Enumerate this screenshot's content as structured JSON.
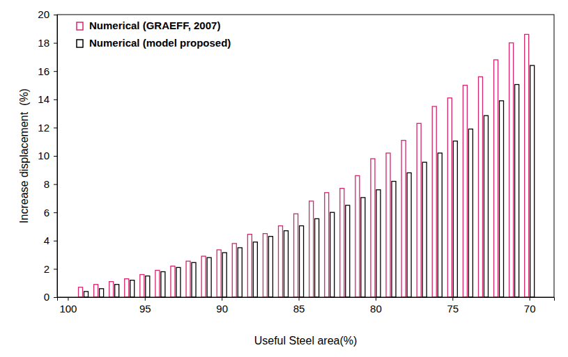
{
  "chart_data": {
    "type": "bar",
    "x_label": "Useful Steel area(%)",
    "y_label": "Increase displacement  (%)",
    "x": [
      99,
      98,
      97,
      96,
      95,
      94,
      93,
      92,
      91,
      90,
      89,
      88,
      87,
      86,
      85,
      84,
      83,
      82,
      81,
      80,
      79,
      78,
      77,
      76,
      75,
      74,
      73,
      72,
      71,
      70
    ],
    "series": [
      {
        "name": "Numerical (GRAEFF, 2007)",
        "color": "#d6246e",
        "values": [
          0.7,
          0.9,
          1.1,
          1.3,
          1.6,
          1.9,
          2.2,
          2.55,
          2.9,
          3.35,
          3.8,
          4.45,
          4.5,
          5.05,
          5.9,
          6.8,
          7.4,
          7.7,
          8.6,
          9.8,
          10.2,
          11.1,
          12.3,
          13.5,
          14.1,
          15.0,
          15.6,
          16.8,
          18.0,
          18.6
        ]
      },
      {
        "name": "Numerical (model proposed)",
        "color": "#000000",
        "values": [
          0.4,
          0.6,
          0.9,
          1.2,
          1.5,
          1.8,
          2.1,
          2.45,
          2.8,
          3.15,
          3.5,
          3.9,
          4.3,
          4.7,
          5.05,
          5.55,
          6.0,
          6.5,
          7.05,
          7.6,
          8.2,
          8.8,
          9.55,
          10.2,
          11.05,
          11.9,
          12.85,
          13.9,
          15.05,
          16.4
        ]
      }
    ],
    "xlim": [
      100.7,
      68.4
    ],
    "xticks": [
      100,
      95,
      90,
      85,
      80,
      75,
      70
    ],
    "ylim": [
      0,
      20
    ],
    "yticks": [
      0,
      2,
      4,
      6,
      8,
      10,
      12,
      14,
      16,
      18,
      20
    ],
    "grid": false,
    "legend": "top-left"
  }
}
